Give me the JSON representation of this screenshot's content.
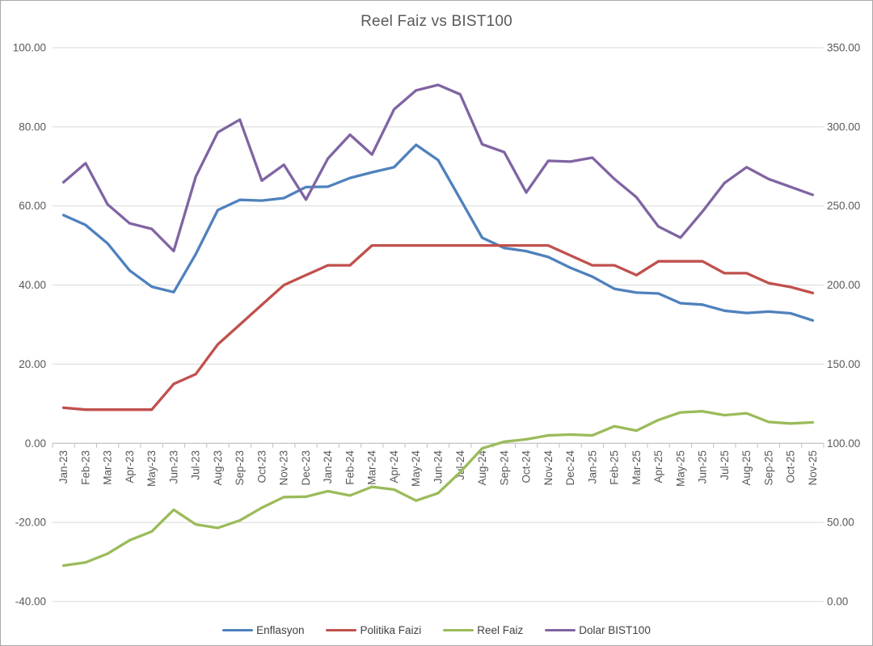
{
  "window": {
    "background": "#ffffff",
    "frame_border_color": "#a9a9a9"
  },
  "chart_data": {
    "type": "line",
    "title": "Reel Faiz vs BIST100",
    "categories": [
      "Jan-23",
      "Feb-23",
      "Mar-23",
      "Apr-23",
      "May-23",
      "Jun-23",
      "Jul-23",
      "Aug-23",
      "Sep-23",
      "Oct-23",
      "Nov-23",
      "Dec-23",
      "Jan-24",
      "Feb-24",
      "Mar-24",
      "Apr-24",
      "May-24",
      "Jun-24",
      "Jul-24",
      "Aug-24",
      "Sep-24",
      "Oct-24",
      "Nov-24",
      "Dec-24",
      "Jan-25",
      "Feb-25",
      "Mar-25",
      "Apr-25",
      "May-25",
      "Jun-25",
      "Jul-25",
      "Aug-25",
      "Sep-25",
      "Oct-25",
      "Nov-25"
    ],
    "series": [
      {
        "name": "Enflasyon",
        "color": "#4F81BD",
        "axis": "left",
        "values": [
          57.68,
          55.18,
          50.51,
          43.68,
          39.59,
          38.21,
          47.83,
          58.94,
          61.53,
          61.36,
          61.98,
          64.77,
          64.86,
          67.07,
          68.5,
          69.8,
          75.45,
          71.6,
          61.78,
          51.97,
          49.38,
          48.58,
          47.09,
          44.38,
          42.12,
          39.05,
          38.1,
          37.86,
          35.41,
          35.05,
          33.52,
          32.95,
          33.29,
          32.87,
          31.07
        ]
      },
      {
        "name": "Politika Faizi",
        "color": "#C0504D",
        "axis": "left",
        "values": [
          9.0,
          8.5,
          8.5,
          8.5,
          8.5,
          15.0,
          17.5,
          25.0,
          30.0,
          35.0,
          40.0,
          42.5,
          45.0,
          45.0,
          50.0,
          50.0,
          50.0,
          50.0,
          50.0,
          50.0,
          50.0,
          50.0,
          50.0,
          47.5,
          45.0,
          45.0,
          42.5,
          46.0,
          46.0,
          46.0,
          43.0,
          43.0,
          40.5,
          39.5,
          38.0
        ]
      },
      {
        "name": "Reel Faiz",
        "color": "#9BBB59",
        "axis": "left",
        "values": [
          -30.9,
          -30.1,
          -27.9,
          -24.5,
          -22.3,
          -16.8,
          -20.5,
          -21.4,
          -19.5,
          -16.3,
          -13.6,
          -13.5,
          -12.1,
          -13.2,
          -11.0,
          -11.7,
          -14.5,
          -12.6,
          -7.3,
          -1.3,
          0.4,
          1.0,
          2.0,
          2.2,
          2.0,
          4.3,
          3.2,
          5.9,
          7.8,
          8.1,
          7.1,
          7.6,
          5.4,
          5.0,
          5.3
        ]
      },
      {
        "name": "Dolar BIST100",
        "color": "#8064A2",
        "axis": "right",
        "values": [
          265,
          277,
          251,
          239,
          235.5,
          221.5,
          268.5,
          296.5,
          304.5,
          266,
          276,
          254,
          280,
          295,
          282.5,
          311,
          323,
          326.5,
          320.5,
          289,
          284,
          258.5,
          278.5,
          278,
          280.5,
          267,
          255.5,
          237,
          230,
          246.5,
          264.5,
          274.5,
          267,
          262,
          257
        ]
      }
    ],
    "left_axis": {
      "min": -40,
      "max": 100,
      "step": 20,
      "tick_labels": [
        "100.00",
        "80.00",
        "60.00",
        "40.00",
        "20.00",
        "0.00",
        "-20.00",
        "-40.00"
      ]
    },
    "right_axis": {
      "min": 0,
      "max": 350,
      "step": 50,
      "tick_labels": [
        "350.00",
        "300.00",
        "250.00",
        "200.00",
        "150.00",
        "100.00",
        "50.00",
        "0.00"
      ]
    },
    "grid": true,
    "legend_position": "bottom",
    "colors": {
      "gridline": "#D9D9D9",
      "axis_line": "#BFBFBF",
      "axis_text": "#595959",
      "title_text": "#595959",
      "legend_text": "#404040"
    }
  }
}
